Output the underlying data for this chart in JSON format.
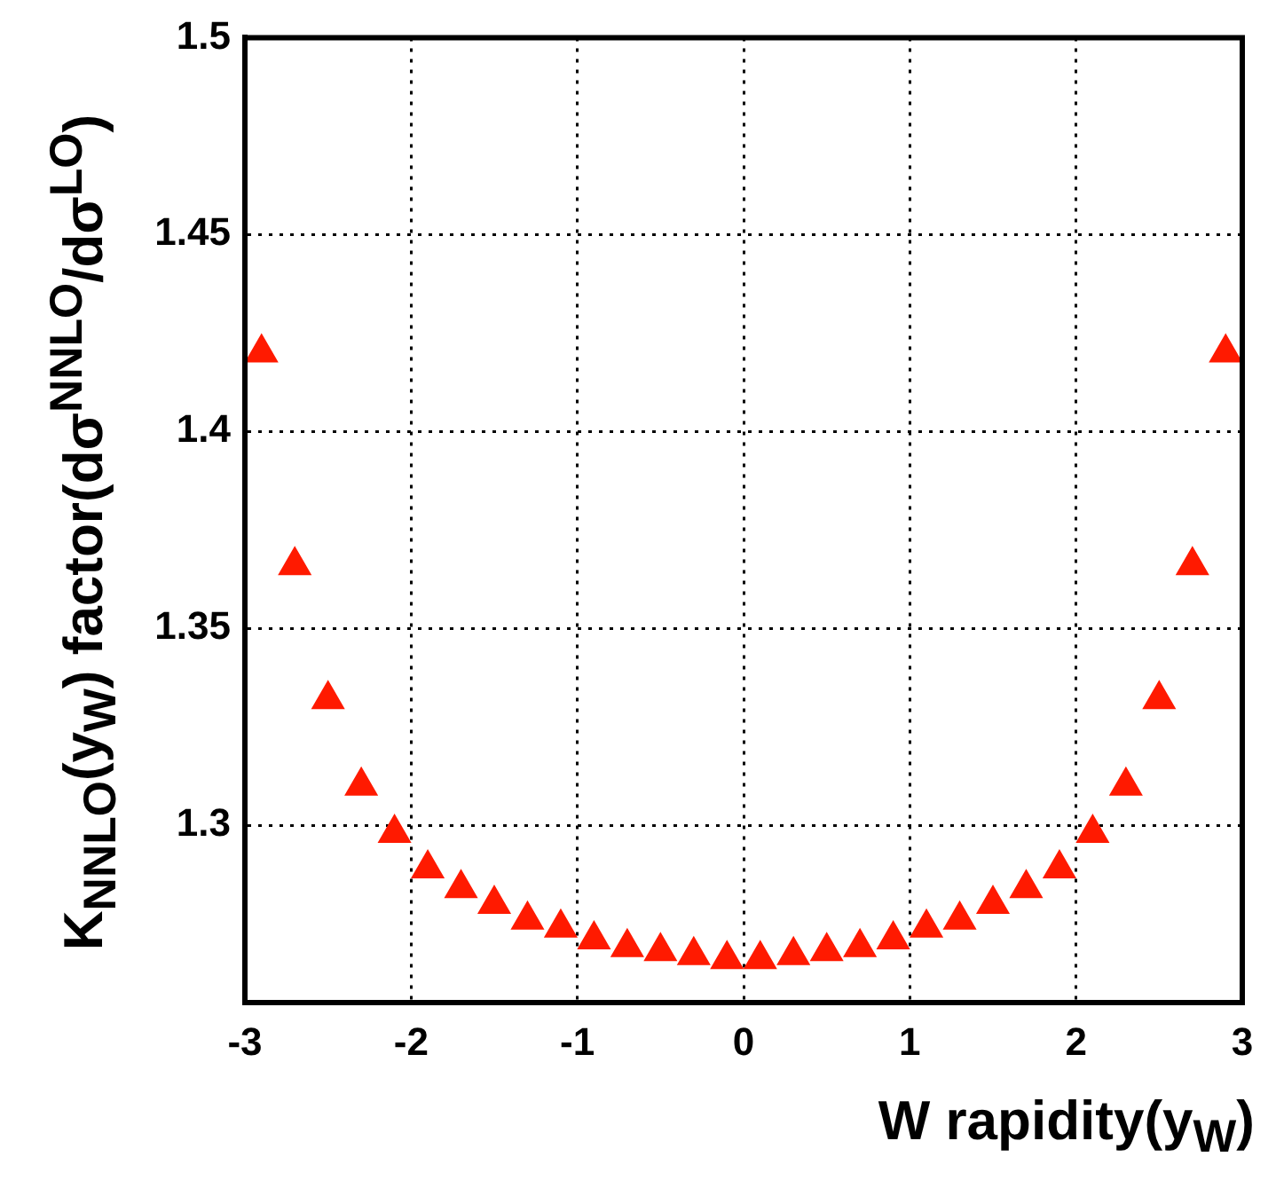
{
  "chart_data": {
    "type": "scatter",
    "xlabel": "W rapidity(y$_{W}$)",
    "ylabel": "K$_{NNLO}$(y$_{W}$) factor(dσ$^{NNLO}$/dσ$^{LO}$)",
    "x": [
      -2.9,
      -2.7,
      -2.5,
      -2.3,
      -2.1,
      -1.9,
      -1.7,
      -1.5,
      -1.3,
      -1.1,
      -0.9,
      -0.7,
      -0.5,
      -0.3,
      -0.1,
      0.1,
      0.3,
      0.5,
      0.7,
      0.9,
      1.1,
      1.3,
      1.5,
      1.7,
      1.9,
      2.1,
      2.3,
      2.5,
      2.7,
      2.9
    ],
    "series": [
      {
        "color": "#ff1a00",
        "values": [
          1.42,
          1.366,
          1.332,
          1.31,
          1.298,
          1.289,
          1.284,
          1.28,
          1.276,
          1.274,
          1.271,
          1.269,
          1.268,
          1.267,
          1.266,
          1.266,
          1.267,
          1.268,
          1.269,
          1.271,
          1.274,
          1.276,
          1.28,
          1.284,
          1.289,
          1.298,
          1.31,
          1.332,
          1.366,
          1.42
        ]
      }
    ],
    "xlim": [
      -3,
      3
    ],
    "ylim": [
      1.255,
      1.5
    ],
    "xticks": [
      -3,
      -2,
      -1,
      0,
      1,
      2,
      3
    ],
    "yticks": [
      1.3,
      1.35,
      1.4,
      1.45,
      1.5
    ],
    "grid": true,
    "marker": "triangle",
    "legend": false
  }
}
